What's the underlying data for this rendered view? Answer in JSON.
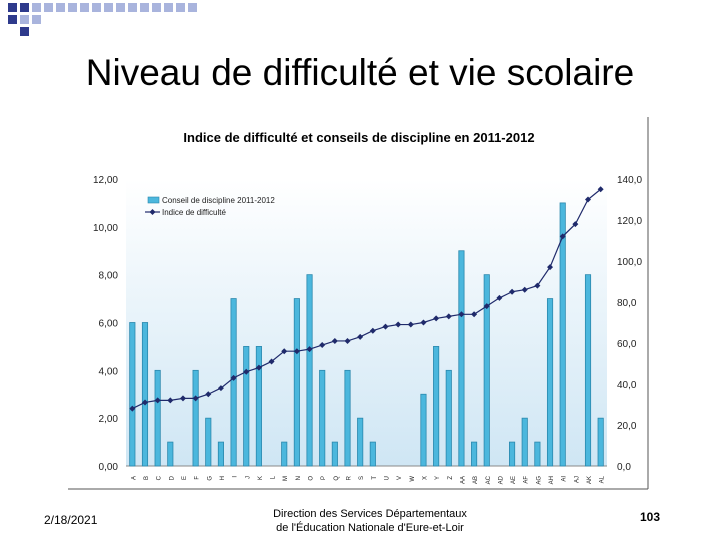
{
  "slide": {
    "title": "Niveau de difficulté et vie scolaire",
    "date": "2/18/2021",
    "footer_line1": "Direction des Services Départementaux",
    "footer_line2": "de l'Éducation Nationale d'Eure-et-Loir",
    "page_number": "103"
  },
  "colors": {
    "corner_dark": "#2e3a8c",
    "corner_light": "#a9b4dd",
    "plot_bg_top": "#ffffff",
    "plot_bg_bottom": "#cfe6f4",
    "bar_fill": "#4bb7dd",
    "bar_stroke": "#2a88ad",
    "line": "#1f2a6b"
  },
  "chart_data": {
    "type": "bar+line",
    "title": "Indice de difficulté et conseils de discipline en 2011-2012",
    "legend": [
      "Conseil de discipline 2011-2012",
      "Indice de difficulté"
    ],
    "legend_position": "top-left",
    "y_left": {
      "min": 0,
      "max": 12,
      "ticks": [
        "0,00",
        "2,00",
        "4,00",
        "6,00",
        "8,00",
        "10,00",
        "12,00"
      ]
    },
    "y_right": {
      "min": 0,
      "max": 140,
      "ticks": [
        "0,0",
        "20,0",
        "40,0",
        "60,0",
        "80,0",
        "100,0",
        "120,0",
        "140,0"
      ]
    },
    "categories": [
      "A",
      "B",
      "C",
      "D",
      "E",
      "F",
      "G",
      "H",
      "I",
      "J",
      "K",
      "L",
      "M",
      "N",
      "O",
      "P",
      "Q",
      "R",
      "S",
      "T",
      "U",
      "V",
      "W",
      "X",
      "Y",
      "Z",
      "AA",
      "AB",
      "AC",
      "AD",
      "AE",
      "AF",
      "AG",
      "AH",
      "AI",
      "AJ",
      "AK",
      "AL"
    ],
    "series": [
      {
        "name": "Conseil de discipline 2011-2012",
        "axis": "left",
        "kind": "bar",
        "values": [
          6,
          6,
          4,
          1,
          0,
          4,
          2,
          1,
          7,
          5,
          5,
          0,
          1,
          7,
          8,
          4,
          1,
          4,
          2,
          1,
          0,
          0,
          0,
          3,
          5,
          4,
          9,
          1,
          8,
          0,
          1,
          2,
          1,
          7,
          11,
          0,
          8,
          2
        ]
      },
      {
        "name": "Indice de difficulté",
        "axis": "right",
        "kind": "line",
        "values": [
          28,
          31,
          32,
          32,
          33,
          33,
          35,
          38,
          43,
          46,
          48,
          51,
          56,
          56,
          57,
          59,
          61,
          61,
          63,
          66,
          68,
          69,
          69,
          70,
          72,
          73,
          74,
          74,
          78,
          82,
          85,
          86,
          88,
          97,
          112,
          118,
          130,
          135
        ]
      }
    ]
  }
}
